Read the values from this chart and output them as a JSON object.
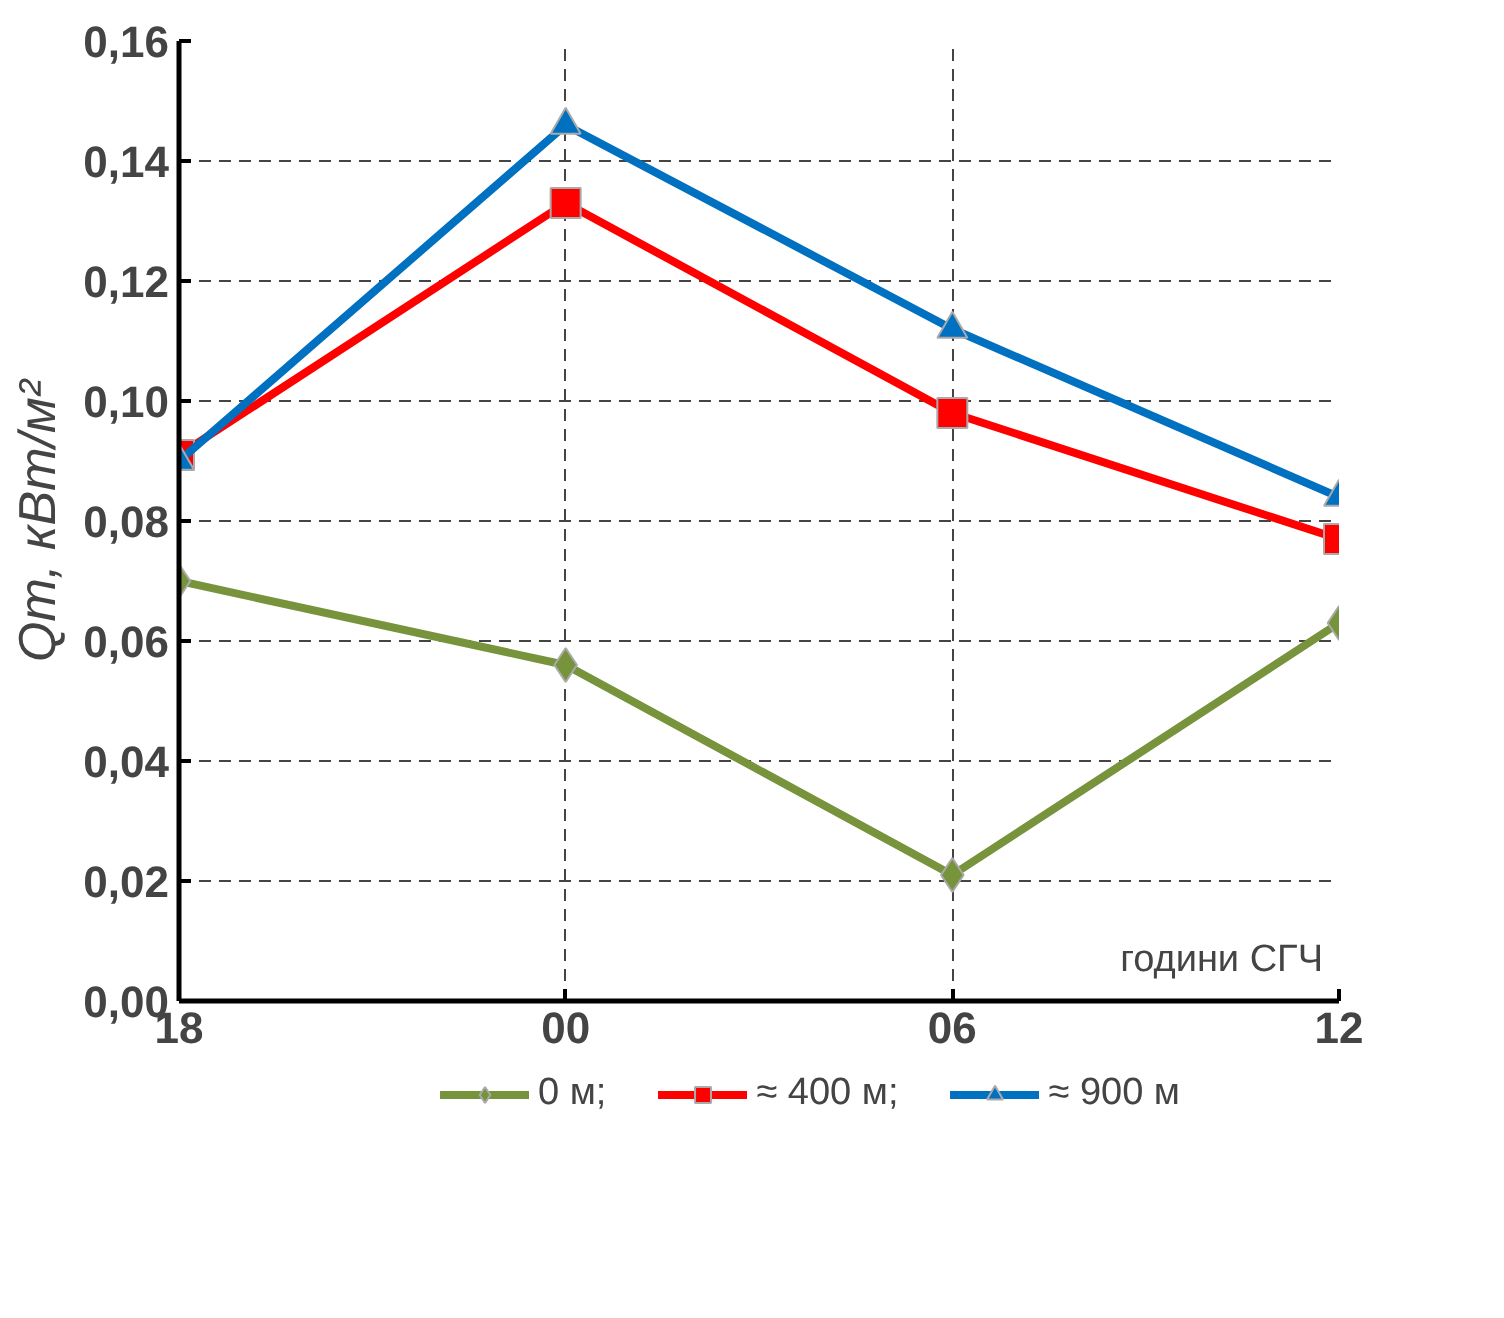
{
  "chart_data": {
    "type": "line",
    "xlabel": "години СГЧ",
    "ylabel": "Qт, кВт/м²",
    "categories": [
      "18",
      "00",
      "06",
      "12"
    ],
    "series": [
      {
        "name": "0 м;",
        "color": "#77933c",
        "marker": "diamond",
        "values": [
          0.07,
          0.056,
          0.021,
          0.063
        ]
      },
      {
        "name": "≈ 400 м;",
        "color": "#ff0000",
        "marker": "square",
        "values": [
          0.091,
          0.133,
          0.098,
          0.077
        ]
      },
      {
        "name": "≈ 900 м",
        "color": "#0070c0",
        "marker": "triangle",
        "values": [
          0.09,
          0.146,
          0.112,
          0.084
        ]
      }
    ],
    "ylim": [
      0,
      0.16
    ],
    "yticks": [
      {
        "value": 0,
        "label": "0,00"
      },
      {
        "value": 0.02,
        "label": "0,02"
      },
      {
        "value": 0.04,
        "label": "0,04"
      },
      {
        "value": 0.06,
        "label": "0,06"
      },
      {
        "value": 0.08,
        "label": "0,08"
      },
      {
        "value": 0.1,
        "label": "0,10"
      },
      {
        "value": 0.12,
        "label": "0,12"
      },
      {
        "value": 0.14,
        "label": "0,14"
      },
      {
        "value": 0.16,
        "label": "0,16"
      }
    ],
    "grid": true,
    "legend": "bottom",
    "line_style": "solid"
  }
}
